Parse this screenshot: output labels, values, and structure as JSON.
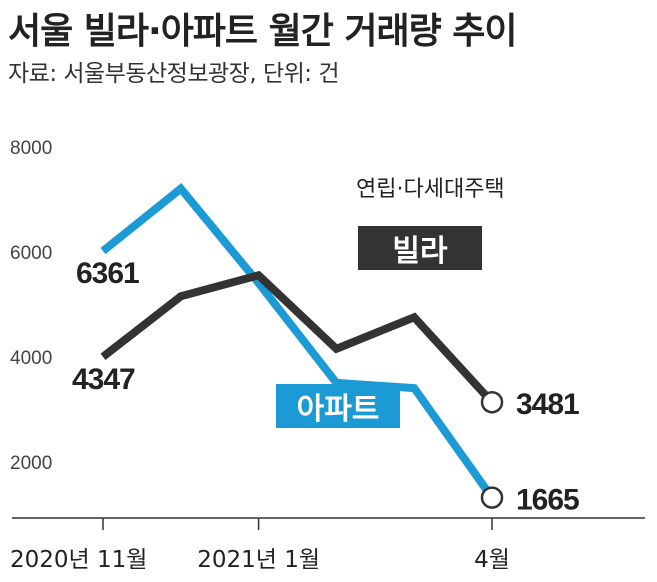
{
  "title": "서울 빌라·아파트 월간 거래량 추이",
  "subtitle": "자료: 서울부동산정보광장, 단위: 건",
  "chart_data": {
    "type": "line",
    "title": "서울 빌라·아파트 월간 거래량 추이",
    "source_unit": "자료: 서울부동산정보광장, 단위: 건",
    "x": [
      "2020-11",
      "2020-12",
      "2021-01",
      "2021-02",
      "2021-03",
      "2021-04"
    ],
    "xtick_labels": [
      "2020년 11월",
      "2021년 1월",
      "4월"
    ],
    "xtick_positions": [
      "2020-11",
      "2021-01",
      "2021-04"
    ],
    "ylim": [
      0,
      8000
    ],
    "yticks": [
      2000,
      4000,
      6000,
      8000
    ],
    "grid": false,
    "series": [
      {
        "name": "빌라",
        "note": "연립·다세대주택",
        "color": "#333333",
        "values": [
          4347,
          5500,
          5900,
          4500,
          5100,
          3481
        ],
        "start_label": "4347",
        "end_label": "3481"
      },
      {
        "name": "아파트",
        "color": "#1b9ad6",
        "values": [
          6361,
          7550,
          5750,
          3850,
          3750,
          1665
        ],
        "start_label": "6361",
        "end_label": "1665"
      }
    ]
  }
}
